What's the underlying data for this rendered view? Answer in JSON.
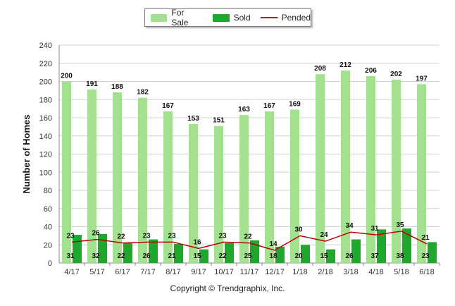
{
  "colors": {
    "for_sale": "#a3e08f",
    "sold": "#1fa82b",
    "pended": "#c00000",
    "grid": "#d0d0d0",
    "axis": "#888888"
  },
  "legend": {
    "items": [
      {
        "label": "For Sale",
        "color": "#a3e08f",
        "kind": "bar"
      },
      {
        "label": "Sold",
        "color": "#1fa82b",
        "kind": "bar"
      },
      {
        "label": "Pended",
        "color": "#c00000",
        "kind": "line"
      }
    ]
  },
  "footer": {
    "copyright": "Copyright © Trendgraphix, Inc."
  },
  "chart_data": {
    "type": "bar",
    "title": "",
    "xlabel": "",
    "ylabel": "Number of Homes",
    "ylim": [
      0,
      240
    ],
    "yticks": [
      0,
      20,
      40,
      60,
      80,
      100,
      120,
      140,
      160,
      180,
      200,
      220,
      240
    ],
    "grid": true,
    "legend_position": "top",
    "categories": [
      "4/17",
      "5/17",
      "6/17",
      "7/17",
      "8/17",
      "9/17",
      "10/17",
      "11/17",
      "12/17",
      "1/18",
      "2/18",
      "3/18",
      "4/18",
      "5/18",
      "6/18"
    ],
    "series": [
      {
        "name": "For Sale",
        "kind": "bar",
        "values": [
          200,
          191,
          188,
          182,
          167,
          153,
          151,
          163,
          167,
          169,
          208,
          212,
          206,
          202,
          197
        ]
      },
      {
        "name": "Sold",
        "kind": "bar",
        "values": [
          31,
          32,
          22,
          26,
          21,
          15,
          22,
          25,
          18,
          20,
          15,
          26,
          37,
          38,
          23
        ]
      },
      {
        "name": "Pended",
        "kind": "line",
        "values": [
          23,
          26,
          22,
          23,
          23,
          16,
          23,
          22,
          14,
          30,
          24,
          34,
          31,
          35,
          21
        ]
      }
    ]
  }
}
